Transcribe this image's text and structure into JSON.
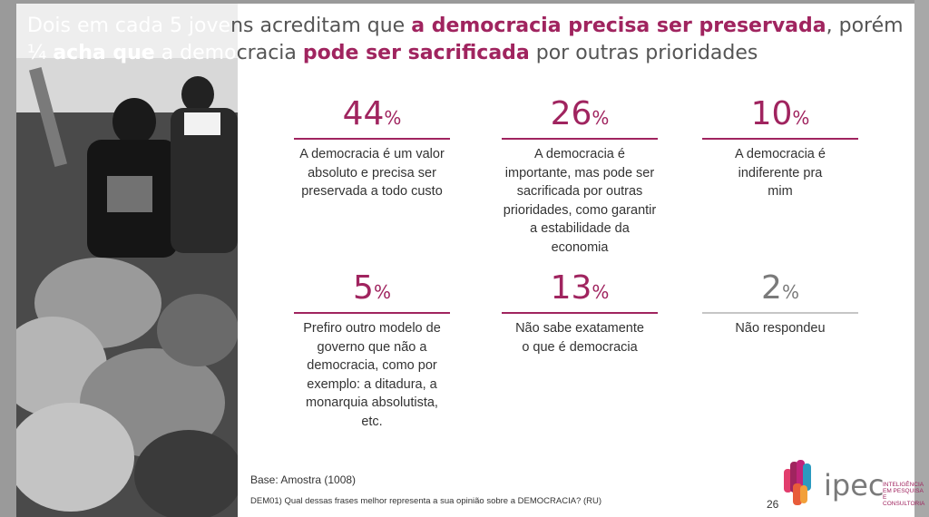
{
  "title": {
    "l1_a": "Dois em cada 5 jove",
    "l1_b": "ns acreditam que ",
    "l1_bold": "a democracia precisa ser  preservada",
    "l1_c": ", porém",
    "l2_a": "¼ ",
    "l2_bold1": "acha que",
    "l2_b": " a demo",
    "l2_c": "cracia ",
    "l2_bold2": "pode ser sacrificada",
    "l2_d": " por outras prioridades"
  },
  "stats": [
    {
      "value": "44",
      "unit": "%",
      "description": "A democracia é um valor absoluto e precisa ser preservada a todo custo"
    },
    {
      "value": "26",
      "unit": "%",
      "description": "A democracia é importante, mas pode ser sacrificada por outras prioridades, como garantir a estabilidade da economia"
    },
    {
      "value": "10",
      "unit": "%",
      "description": "A democracia é indiferente pra mim"
    },
    {
      "value": "5",
      "unit": "%",
      "description": "Prefiro outro modelo de governo que não a democracia, como por exemplo: a ditadura, a monarquia absolutista, etc."
    },
    {
      "value": "13",
      "unit": "%",
      "description": "Não sabe exatamente o que é democracia"
    },
    {
      "value": "2",
      "unit": "%",
      "description": "Não respondeu"
    }
  ],
  "footer": {
    "base": "Base: Amostra (1008)",
    "question": "DEM01) Qual dessas frases melhor representa a sua opinião sobre a DEMOCRACIA? (RU)",
    "page": "26"
  },
  "logo": {
    "word": "ipec",
    "tag1": "INTELIGÊNCIA",
    "tag2": "EM PESQUISA",
    "tag3": "E CONSULTORIA"
  },
  "colors": {
    "accent": "#a0245f",
    "muted": "#7a7a7a"
  }
}
